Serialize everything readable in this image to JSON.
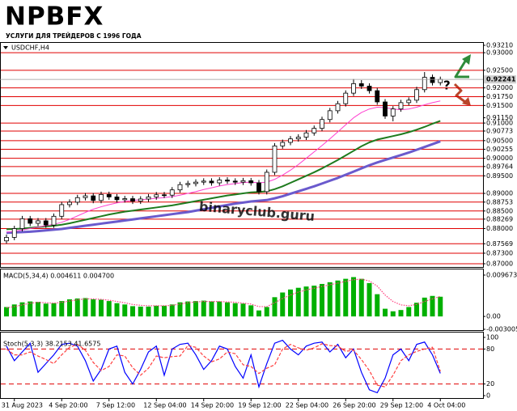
{
  "logo": "NPBFX",
  "tagline": "УСЛУГИ ДЛЯ ТРЕЙДЕРОВ С 1996 ГОДА",
  "chart_data": [
    {
      "type": "candlestick",
      "title": "USDCHF,H4",
      "watermark": "binaryclub.guru",
      "open": [
        0.8765,
        0.8775,
        0.88,
        0.8828,
        0.8815,
        0.8822,
        0.881,
        0.8835,
        0.8868,
        0.8875,
        0.8888,
        0.8893,
        0.888,
        0.8897,
        0.889,
        0.8882,
        0.8885,
        0.8878,
        0.8884,
        0.889,
        0.8896,
        0.8895,
        0.891,
        0.8925,
        0.8928,
        0.8932,
        0.8935,
        0.893,
        0.8938,
        0.8935,
        0.8932,
        0.8936,
        0.893,
        0.8905,
        0.896,
        0.9035,
        0.9045,
        0.9055,
        0.906,
        0.9072,
        0.9085,
        0.911,
        0.9135,
        0.9155,
        0.9185,
        0.9212,
        0.9205,
        0.9192,
        0.916,
        0.912,
        0.914,
        0.9158,
        0.9165,
        0.9195,
        0.923,
        0.9215
      ],
      "high": [
        0.8783,
        0.8808,
        0.8836,
        0.8836,
        0.883,
        0.883,
        0.8843,
        0.8876,
        0.8883,
        0.8896,
        0.8901,
        0.8901,
        0.8905,
        0.8905,
        0.8898,
        0.8893,
        0.8893,
        0.8892,
        0.8898,
        0.8904,
        0.8904,
        0.8918,
        0.8933,
        0.8936,
        0.894,
        0.8943,
        0.8943,
        0.8946,
        0.8946,
        0.8943,
        0.8944,
        0.8944,
        0.8938,
        0.8968,
        0.9043,
        0.9053,
        0.9063,
        0.9068,
        0.908,
        0.9093,
        0.9118,
        0.9143,
        0.9163,
        0.9193,
        0.9225,
        0.9222,
        0.9213,
        0.92,
        0.9168,
        0.9148,
        0.9166,
        0.9173,
        0.9203,
        0.9245,
        0.9238,
        0.9232
      ],
      "low": [
        0.8757,
        0.8767,
        0.8792,
        0.8807,
        0.8807,
        0.8802,
        0.8802,
        0.8827,
        0.886,
        0.8867,
        0.888,
        0.8872,
        0.8872,
        0.8882,
        0.8874,
        0.8874,
        0.887,
        0.887,
        0.8876,
        0.8882,
        0.8887,
        0.8887,
        0.8902,
        0.8917,
        0.892,
        0.8924,
        0.8922,
        0.8922,
        0.8927,
        0.8924,
        0.8924,
        0.8922,
        0.8897,
        0.8897,
        0.8952,
        0.9027,
        0.9037,
        0.9047,
        0.9052,
        0.9064,
        0.9077,
        0.9102,
        0.9127,
        0.9147,
        0.9177,
        0.9197,
        0.9184,
        0.9152,
        0.9112,
        0.9105,
        0.9132,
        0.915,
        0.9157,
        0.9187,
        0.9207,
        0.9207
      ],
      "close": [
        0.8775,
        0.88,
        0.8828,
        0.8815,
        0.8822,
        0.881,
        0.8835,
        0.8868,
        0.8875,
        0.8888,
        0.8893,
        0.888,
        0.8897,
        0.889,
        0.8882,
        0.8885,
        0.8878,
        0.8884,
        0.889,
        0.8896,
        0.8895,
        0.891,
        0.8925,
        0.8928,
        0.8932,
        0.8935,
        0.893,
        0.8938,
        0.8935,
        0.8932,
        0.8936,
        0.893,
        0.8905,
        0.896,
        0.9035,
        0.9045,
        0.9055,
        0.906,
        0.9072,
        0.9085,
        0.911,
        0.9135,
        0.9155,
        0.9185,
        0.9212,
        0.9205,
        0.9192,
        0.916,
        0.912,
        0.914,
        0.9158,
        0.9165,
        0.9195,
        0.923,
        0.9215,
        0.9224
      ],
      "lines": [
        {
          "color": "#6a5acd",
          "width": 3,
          "values": [
            0.8788,
            0.8789,
            0.879,
            0.8791,
            0.8793,
            0.8795,
            0.8797,
            0.8799,
            0.8802,
            0.8805,
            0.8808,
            0.8811,
            0.8814,
            0.8817,
            0.882,
            0.8823,
            0.8826,
            0.8829,
            0.8832,
            0.8835,
            0.8838,
            0.8841,
            0.8844,
            0.8847,
            0.8851,
            0.8855,
            0.8859,
            0.8863,
            0.8867,
            0.8871,
            0.8874,
            0.8877,
            0.8879,
            0.8881,
            0.8886,
            0.8892,
            0.8899,
            0.8906,
            0.8913,
            0.892,
            0.8928,
            0.8936,
            0.8944,
            0.8953,
            0.8962,
            0.8971,
            0.898,
            0.8988,
            0.8995,
            0.9002,
            0.9009,
            0.9016,
            0.9024,
            0.9032,
            0.904,
            0.9048
          ]
        },
        {
          "color": "#1e7b1e",
          "width": 2,
          "values": [
            0.8798,
            0.8799,
            0.88,
            0.8802,
            0.8804,
            0.8806,
            0.8808,
            0.8811,
            0.8815,
            0.882,
            0.8825,
            0.883,
            0.8835,
            0.884,
            0.8844,
            0.8848,
            0.8851,
            0.8854,
            0.8857,
            0.886,
            0.8863,
            0.8866,
            0.887,
            0.8874,
            0.8878,
            0.8882,
            0.8886,
            0.889,
            0.8894,
            0.8897,
            0.89,
            0.8903,
            0.8904,
            0.8906,
            0.8912,
            0.892,
            0.893,
            0.894,
            0.895,
            0.896,
            0.8971,
            0.8983,
            0.8995,
            0.9008,
            0.9021,
            0.9034,
            0.9045,
            0.9053,
            0.9058,
            0.9063,
            0.9068,
            0.9074,
            0.9081,
            0.9089,
            0.9098,
            0.9106
          ]
        },
        {
          "color": "#ff3fd0",
          "width": 1,
          "values": [
            0.879,
            0.8792,
            0.8796,
            0.88,
            0.8804,
            0.8808,
            0.8812,
            0.8818,
            0.8826,
            0.8836,
            0.8846,
            0.8855,
            0.8862,
            0.8868,
            0.8873,
            0.8877,
            0.888,
            0.8882,
            0.8884,
            0.8886,
            0.8888,
            0.8891,
            0.8895,
            0.89,
            0.8905,
            0.8911,
            0.8916,
            0.8921,
            0.8925,
            0.8928,
            0.8931,
            0.8932,
            0.893,
            0.8932,
            0.894,
            0.8952,
            0.8966,
            0.8982,
            0.9,
            0.9018,
            0.9036,
            0.9055,
            0.9075,
            0.9095,
            0.9115,
            0.913,
            0.914,
            0.9145,
            0.9144,
            0.914,
            0.9138,
            0.914,
            0.9145,
            0.9152,
            0.9158,
            0.9163
          ]
        }
      ],
      "levels": [
        0.93,
        0.925,
        0.92,
        0.9175,
        0.915,
        0.91,
        0.90773,
        0.905,
        0.90255,
        0.9,
        0.89764,
        0.895,
        0.89,
        0.88753,
        0.885,
        0.88269,
        0.88,
        0.87569,
        0.873,
        0.87
      ],
      "level_color": "#e00000",
      "last_price": {
        "value": 0.92241,
        "label": "0.92241"
      },
      "ylim": [
        0.87,
        0.9321
      ],
      "yticks": [
        {
          "value": 0.9321,
          "label": "0.93210"
        },
        {
          "value": 0.93,
          "label": "0.93000"
        },
        {
          "value": 0.925,
          "label": "0.92500"
        },
        {
          "value": 0.92,
          "label": "0.92000"
        },
        {
          "value": 0.9175,
          "label": "0.91750"
        },
        {
          "value": 0.915,
          "label": "0.91500"
        },
        {
          "value": 0.9115,
          "label": "0.91150"
        },
        {
          "value": 0.91,
          "label": "0.91000"
        },
        {
          "value": 0.90773,
          "label": "0.90773"
        },
        {
          "value": 0.905,
          "label": "0.90500"
        },
        {
          "value": 0.90255,
          "label": "0.90255"
        },
        {
          "value": 0.9,
          "label": "0.90000"
        },
        {
          "value": 0.89764,
          "label": "0.89764"
        },
        {
          "value": 0.895,
          "label": "0.89500"
        },
        {
          "value": 0.89,
          "label": "0.89000"
        },
        {
          "value": 0.88753,
          "label": "0.88753"
        },
        {
          "value": 0.885,
          "label": "0.88500"
        },
        {
          "value": 0.88269,
          "label": "0.88269"
        },
        {
          "value": 0.88,
          "label": "0.88000"
        },
        {
          "value": 0.87569,
          "label": "0.87569"
        },
        {
          "value": 0.873,
          "label": "0.87300"
        },
        {
          "value": 0.87,
          "label": "0.87000"
        }
      ]
    },
    {
      "type": "bar",
      "title": "MACD(5,34,4) 0.004611 0.004700",
      "series": [
        {
          "color": "#00b000",
          "values": [
            0.0022,
            0.0028,
            0.0033,
            0.0035,
            0.0034,
            0.003,
            0.0031,
            0.0036,
            0.004,
            0.0042,
            0.0043,
            0.004,
            0.0039,
            0.0036,
            0.0031,
            0.0028,
            0.0024,
            0.0023,
            0.0023,
            0.0025,
            0.0025,
            0.0028,
            0.0033,
            0.0035,
            0.0036,
            0.0037,
            0.0035,
            0.0035,
            0.0033,
            0.0031,
            0.003,
            0.0026,
            0.0014,
            0.0022,
            0.0045,
            0.0056,
            0.0063,
            0.0067,
            0.007,
            0.0072,
            0.0076,
            0.008,
            0.0084,
            0.0088,
            0.0092,
            0.0088,
            0.0078,
            0.0052,
            0.0018,
            0.0012,
            0.0015,
            0.0022,
            0.0032,
            0.0044,
            0.0048,
            0.004611
          ]
        },
        {
          "color": "#ff3f7f",
          "style": "dotted",
          "values": [
            0.002,
            0.0023,
            0.0027,
            0.0031,
            0.0033,
            0.0032,
            0.0031,
            0.0033,
            0.0036,
            0.0039,
            0.0041,
            0.0041,
            0.004,
            0.0038,
            0.0035,
            0.0032,
            0.0028,
            0.0026,
            0.0025,
            0.0025,
            0.0025,
            0.0026,
            0.0029,
            0.0032,
            0.0034,
            0.0035,
            0.0035,
            0.0035,
            0.0034,
            0.0033,
            0.0031,
            0.0029,
            0.0023,
            0.0023,
            0.0032,
            0.0042,
            0.005,
            0.0057,
            0.0062,
            0.0066,
            0.007,
            0.0074,
            0.0078,
            0.0082,
            0.0086,
            0.0087,
            0.0083,
            0.0071,
            0.005,
            0.0035,
            0.0027,
            0.0025,
            0.0028,
            0.0035,
            0.0041,
            0.0047
          ]
        }
      ],
      "ylim": [
        -0.003005,
        0.009673
      ],
      "yticks": [
        0.009673,
        {
          "value": 0,
          "label": "0.00"
        },
        -0.003005
      ]
    },
    {
      "type": "line",
      "title": "Stoch(5,3,3) 38.2153 41.6575",
      "series": [
        {
          "color": "#0000ff",
          "style": "solid",
          "values": [
            85,
            60,
            75,
            90,
            40,
            55,
            70,
            88,
            90,
            85,
            60,
            25,
            45,
            80,
            85,
            40,
            20,
            45,
            75,
            85,
            35,
            80,
            88,
            90,
            70,
            45,
            60,
            85,
            80,
            50,
            30,
            70,
            15,
            55,
            90,
            95,
            80,
            70,
            85,
            90,
            92,
            75,
            88,
            65,
            80,
            40,
            10,
            5,
            30,
            70,
            80,
            60,
            88,
            92,
            70,
            38.2153
          ]
        },
        {
          "color": "#ff3f3f",
          "style": "dashed",
          "values": [
            80,
            70,
            70,
            75,
            68,
            62,
            55,
            70,
            83,
            88,
            78,
            57,
            43,
            50,
            70,
            68,
            48,
            35,
            47,
            68,
            65,
            67,
            68,
            86,
            83,
            68,
            58,
            63,
            75,
            72,
            53,
            50,
            38,
            47,
            53,
            80,
            88,
            82,
            78,
            82,
            89,
            86,
            85,
            76,
            78,
            62,
            43,
            18,
            15,
            35,
            60,
            70,
            76,
            80,
            83,
            41.6575
          ]
        }
      ],
      "levels": [
        80,
        20
      ],
      "level_color": "#e00000",
      "ylim": [
        0,
        100
      ],
      "yticks": [
        100,
        80,
        20,
        0
      ],
      "categories": [
        null,
        "31 Aug 2023",
        null,
        null,
        null,
        null,
        null,
        "4 Sep 20:00",
        null,
        null,
        null,
        null,
        null,
        "7 Sep 12:00",
        null,
        null,
        null,
        null,
        null,
        "12 Sep 04:00",
        null,
        null,
        null,
        null,
        null,
        "14 Sep 20:00",
        null,
        null,
        null,
        null,
        null,
        "19 Sep 12:00",
        null,
        null,
        null,
        null,
        null,
        "22 Sep 04:00",
        null,
        null,
        null,
        null,
        null,
        "26 Sep 20:00",
        null,
        null,
        null,
        null,
        null,
        "29 Sep 12:00",
        null,
        null,
        null,
        null,
        null,
        "4 Oct 04:00"
      ]
    }
  ]
}
